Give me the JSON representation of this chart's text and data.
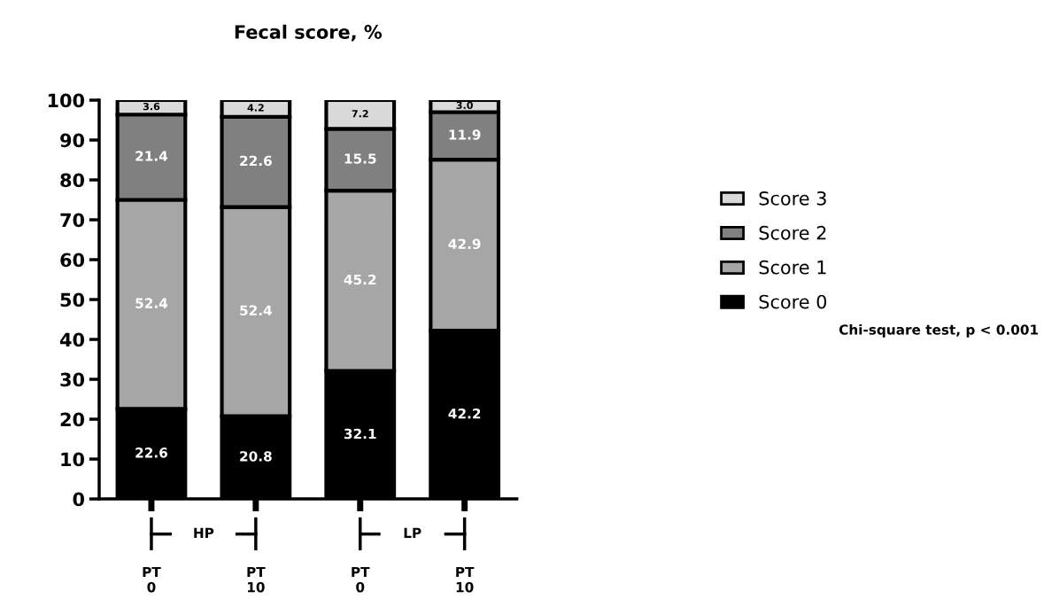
{
  "chart_data": {
    "type": "bar",
    "title": "Fecal score, %",
    "categories": [
      "PT\n0",
      "PT\n10",
      "PT\n0",
      "PT\n10"
    ],
    "series": [
      {
        "name": "Score 0",
        "color": "#000000",
        "values": [
          22.6,
          20.8,
          32.1,
          42.2
        ],
        "value_labels": [
          "22.6",
          "20.8",
          "32.1",
          "42.2"
        ]
      },
      {
        "name": "Score 1",
        "color": "#a6a6a6",
        "values": [
          52.4,
          52.4,
          45.2,
          42.9
        ],
        "value_labels": [
          "52.4",
          "52.4",
          "45.2",
          "42.9"
        ]
      },
      {
        "name": "Score 2",
        "color": "#808080",
        "values": [
          21.4,
          22.6,
          15.5,
          11.9
        ],
        "value_labels": [
          "21.4",
          "22.6",
          "15.5",
          "11.9"
        ]
      },
      {
        "name": "Score 3",
        "color": "#d9d9d9",
        "values": [
          3.6,
          4.2,
          7.2,
          3.0
        ],
        "value_labels": [
          "3.6",
          "4.2",
          "7.2",
          "3.0"
        ]
      }
    ],
    "stacked": true,
    "ylim": [
      0,
      100
    ],
    "yticks": [
      0,
      10,
      20,
      30,
      40,
      50,
      60,
      70,
      80,
      90,
      100
    ],
    "grid": false,
    "legend": "right",
    "annotations": [
      "HP",
      "LP",
      "Chi-square test, p < 0.001"
    ]
  }
}
